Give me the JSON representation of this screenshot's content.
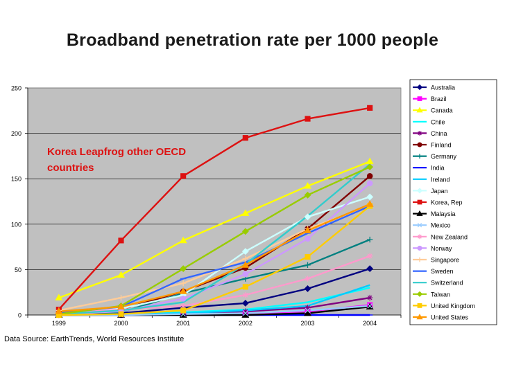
{
  "chart_data": {
    "type": "line",
    "title": "Broadband penetration rate per 1000 people",
    "annotation": "Korea Leapfrog other OECD countries",
    "annotation_color": "#dd1111",
    "source": "Data Source: EarthTrends, World Resources Institute",
    "categories": [
      "1999",
      "2000",
      "2001",
      "2002",
      "2003",
      "2004"
    ],
    "ylim": [
      0,
      250
    ],
    "yticks": [
      "0",
      "50",
      "100",
      "150",
      "200",
      "250"
    ],
    "plot_background": "#c0c0c0",
    "series": [
      {
        "name": "Australia",
        "color": "#000080",
        "marker": "diamond",
        "values": [
          1,
          2,
          8,
          13,
          29,
          51
        ]
      },
      {
        "name": "Brazil",
        "color": "#ff00ff",
        "marker": "square",
        "values": [
          0,
          0,
          1,
          2,
          4,
          11
        ]
      },
      {
        "name": "Canada",
        "color": "#ffff00",
        "marker": "triangle",
        "values": [
          19,
          44,
          82,
          112,
          142,
          169
        ]
      },
      {
        "name": "Chile",
        "color": "#00ffff",
        "marker": "none",
        "values": [
          0,
          0,
          3,
          6,
          14,
          30
        ]
      },
      {
        "name": "China",
        "color": "#800080",
        "marker": "star",
        "values": [
          0,
          0,
          1,
          4,
          8,
          19
        ]
      },
      {
        "name": "Finland",
        "color": "#800000",
        "marker": "circle",
        "values": [
          2,
          6,
          26,
          52,
          95,
          153
        ]
      },
      {
        "name": "Germany",
        "color": "#008080",
        "marker": "plus",
        "values": [
          2,
          3,
          24,
          40,
          55,
          83
        ]
      },
      {
        "name": "India",
        "color": "#0000ff",
        "marker": "dash",
        "values": [
          0,
          0,
          0,
          0,
          0,
          0
        ]
      },
      {
        "name": "Ireland",
        "color": "#00ccff",
        "marker": "none",
        "values": [
          0,
          1,
          2,
          5,
          10,
          33
        ]
      },
      {
        "name": "Japan",
        "color": "#ccffff",
        "marker": "diamond",
        "values": [
          1,
          7,
          22,
          70,
          108,
          130
        ]
      },
      {
        "name": "Korea, Rep",
        "color": "#dd1111",
        "marker": "square",
        "values": [
          6,
          82,
          153,
          195,
          216,
          228
        ]
      },
      {
        "name": "Malaysia",
        "color": "#000000",
        "marker": "triangle",
        "values": [
          0,
          0,
          0,
          0,
          2,
          9
        ]
      },
      {
        "name": "Mexico",
        "color": "#99ccff",
        "marker": "x",
        "values": [
          0,
          0,
          1,
          2,
          5,
          10
        ]
      },
      {
        "name": "New Zealand",
        "color": "#ff99cc",
        "marker": "star",
        "values": [
          2,
          6,
          10,
          22,
          40,
          65
        ]
      },
      {
        "name": "Norway",
        "color": "#cc99ff",
        "marker": "circle",
        "values": [
          1,
          4,
          18,
          45,
          84,
          145
        ]
      },
      {
        "name": "Singapore",
        "color": "#ffcc99",
        "marker": "plus",
        "values": [
          5,
          19,
          35,
          62,
          95,
          120
        ]
      },
      {
        "name": "Sweden",
        "color": "#3366ff",
        "marker": "dash",
        "values": [
          2,
          9,
          40,
          58,
          90,
          120
        ]
      },
      {
        "name": "Switzerland",
        "color": "#33cccc",
        "marker": "none",
        "values": [
          1,
          5,
          14,
          56,
          109,
          166
        ]
      },
      {
        "name": "Taiwan",
        "color": "#99cc00",
        "marker": "diamond",
        "values": [
          1,
          10,
          51,
          92,
          132,
          163
        ]
      },
      {
        "name": "United Kingdom",
        "color": "#ffcc00",
        "marker": "square",
        "values": [
          0,
          1,
          5,
          31,
          64,
          120
        ]
      },
      {
        "name": "United States",
        "color": "#ff9900",
        "marker": "triangle",
        "values": [
          4,
          9,
          26,
          55,
          93,
          122
        ]
      }
    ]
  }
}
